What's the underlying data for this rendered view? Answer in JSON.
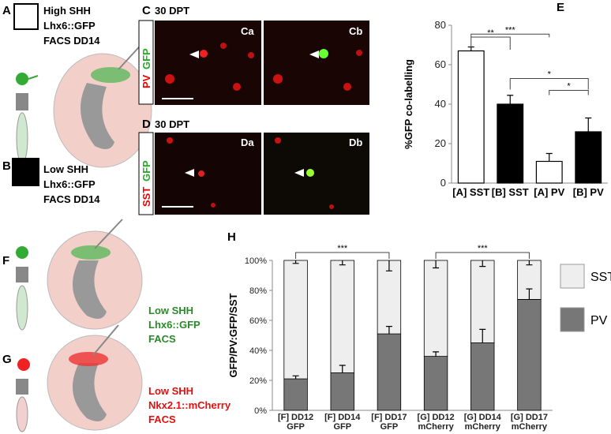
{
  "panel_a": {
    "letter": "A",
    "lines": [
      "High SHH",
      "Lhx6::GFP",
      "FACS DD14"
    ]
  },
  "panel_b": {
    "letter": "B",
    "lines": [
      "Low SHH",
      "Lhx6::GFP",
      "FACS DD14"
    ]
  },
  "panel_c": {
    "letter": "C",
    "title": "30 DPT",
    "stain_1": "PV",
    "stain_2": "GFP",
    "image_a": "Ca",
    "image_b": "Cb"
  },
  "panel_d": {
    "letter": "D",
    "title": "30 DPT",
    "stain_1": "SST",
    "stain_2": "GFP",
    "image_a": "Da",
    "image_b": "Db"
  },
  "panel_f": {
    "letter": "F",
    "lines": [
      "Low SHH",
      "Lhx6::GFP",
      "FACS"
    ]
  },
  "panel_g": {
    "letter": "G",
    "lines": [
      "Low SHH",
      "Nkx2.1::mCherry",
      "FACS"
    ]
  },
  "chart_data": [
    {
      "type": "bar",
      "letter": "E",
      "y_label": "%GFP co-labelling",
      "categories": [
        "[A] SST",
        "[B] SST",
        "[A] PV",
        "[B] PV"
      ],
      "values": [
        67,
        40,
        11,
        26
      ],
      "errors": [
        2,
        4.5,
        4,
        7
      ],
      "colors": [
        "#ffffff",
        "#000000",
        "#ffffff",
        "#000000"
      ],
      "ylim": [
        0,
        80
      ],
      "yticks": [
        0,
        20,
        40,
        60,
        80
      ],
      "annotations": [
        {
          "text": "**",
          "between": [
            "[A] SST",
            "[B] SST"
          ]
        },
        {
          "text": "***",
          "between": [
            "[A] SST",
            "[A] PV"
          ]
        },
        {
          "text": "*",
          "between": [
            "[B] SST",
            "[B] PV"
          ]
        },
        {
          "text": "*",
          "between": [
            "[A] PV",
            "[B] PV"
          ]
        }
      ]
    },
    {
      "type": "stacked_bar",
      "letter": "H",
      "y_label": "GFP/PV:GFP/SST",
      "categories": [
        "[F] DD12\nGFP",
        "[F] DD14\nGFP",
        "[F] DD17\nGFP",
        "[G] DD12\nmCherry",
        "[G] DD14\nmCherry",
        "[G] DD17\nmCherry"
      ],
      "series": [
        {
          "name": "PV",
          "color": "#777777",
          "values": [
            21,
            25,
            51,
            36,
            45,
            74
          ],
          "errors": [
            2,
            5,
            5,
            3,
            9,
            7
          ]
        },
        {
          "name": "SST",
          "color": "#eeeeee",
          "values": [
            79,
            75,
            49,
            64,
            55,
            26
          ],
          "errors": [
            2,
            3,
            7,
            5,
            4,
            3
          ]
        }
      ],
      "ylim": [
        0,
        100
      ],
      "yticks": [
        {
          "value": 0,
          "label": "0%"
        },
        {
          "value": 20,
          "label": "20%"
        },
        {
          "value": 40,
          "label": "40%"
        },
        {
          "value": 60,
          "label": "60%"
        },
        {
          "value": 80,
          "label": "80%"
        },
        {
          "value": 100,
          "label": "100%"
        }
      ],
      "annotations": [
        {
          "text": "***",
          "between": [
            "[F] DD12\nGFP",
            "[F] DD17\nGFP"
          ]
        },
        {
          "text": "***",
          "between": [
            "[G] DD12\nmCherry",
            "[G] DD17\nmCherry"
          ]
        }
      ]
    }
  ]
}
